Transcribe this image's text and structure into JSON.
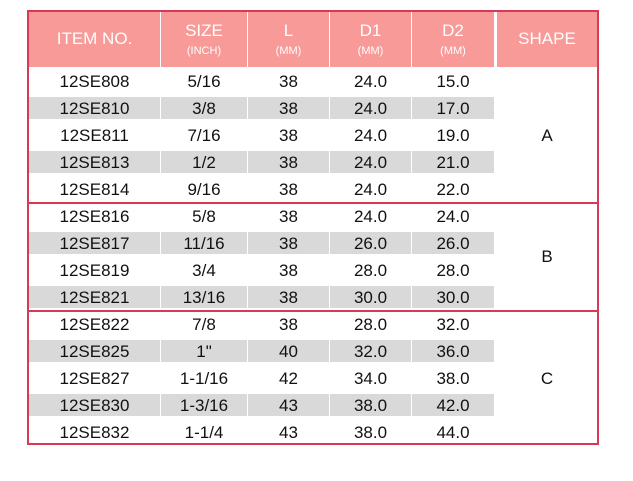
{
  "headers": [
    {
      "main": "ITEM NO.",
      "unit": ""
    },
    {
      "main": "SIZE",
      "unit": "(INCH)"
    },
    {
      "main": "L",
      "unit": "(MM)"
    },
    {
      "main": "D1",
      "unit": "(MM)"
    },
    {
      "main": "D2",
      "unit": "(MM)"
    },
    {
      "main": "SHAPE",
      "unit": ""
    }
  ],
  "groups": [
    {
      "shape": "A",
      "rows": [
        [
          "12SE808",
          "5/16",
          "38",
          "24.0",
          "15.0"
        ],
        [
          "12SE810",
          "3/8",
          "38",
          "24.0",
          "17.0"
        ],
        [
          "12SE811",
          "7/16",
          "38",
          "24.0",
          "19.0"
        ],
        [
          "12SE813",
          "1/2",
          "38",
          "24.0",
          "21.0"
        ],
        [
          "12SE814",
          "9/16",
          "38",
          "24.0",
          "22.0"
        ]
      ]
    },
    {
      "shape": "B",
      "rows": [
        [
          "12SE816",
          "5/8",
          "38",
          "24.0",
          "24.0"
        ],
        [
          "12SE817",
          "11/16",
          "38",
          "26.0",
          "26.0"
        ],
        [
          "12SE819",
          "3/4",
          "38",
          "28.0",
          "28.0"
        ],
        [
          "12SE821",
          "13/16",
          "38",
          "30.0",
          "30.0"
        ]
      ]
    },
    {
      "shape": "C",
      "rows": [
        [
          "12SE822",
          "7/8",
          "38",
          "28.0",
          "32.0"
        ],
        [
          "12SE825",
          "1\"",
          "40",
          "32.0",
          "36.0"
        ],
        [
          "12SE827",
          "1-1/16",
          "42",
          "34.0",
          "38.0"
        ],
        [
          "12SE830",
          "1-3/16",
          "43",
          "38.0",
          "42.0"
        ],
        [
          "12SE832",
          "1-1/4",
          "43",
          "38.0",
          "44.0"
        ]
      ]
    }
  ],
  "colors": {
    "header_bg": "#f79a98",
    "border": "#d83a55",
    "shade": "#d9d9d9"
  }
}
